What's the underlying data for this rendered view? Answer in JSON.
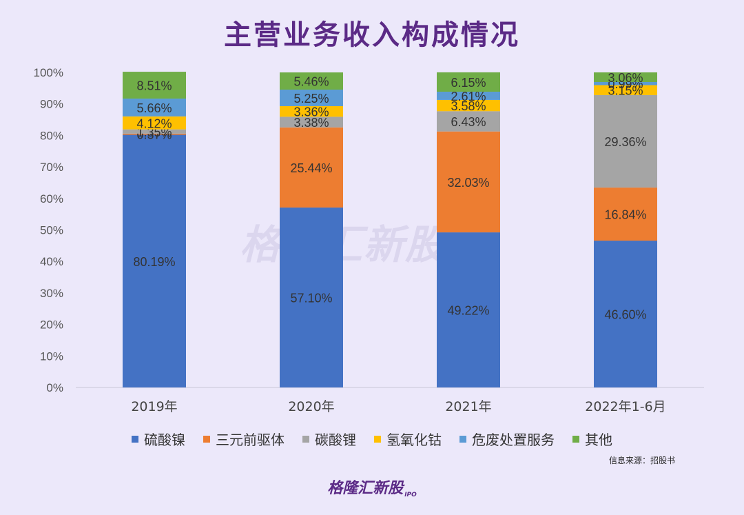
{
  "title": "主营业务收入构成情况",
  "source": "信息来源：招股书",
  "logo_text": "格隆汇新股",
  "logo_sub": "IPO",
  "chart_data": {
    "type": "bar",
    "stacked": true,
    "categories": [
      "2019年",
      "2020年",
      "2021年",
      "2022年1-6月"
    ],
    "ylim": [
      0,
      100
    ],
    "yticks": [
      "0%",
      "10%",
      "20%",
      "30%",
      "40%",
      "50%",
      "60%",
      "70%",
      "80%",
      "90%",
      "100%"
    ],
    "grid": false,
    "legend_position": "bottom",
    "series": [
      {
        "name": "硫酸镍",
        "color": "#4472c4",
        "values": [
          80.19,
          57.1,
          49.22,
          46.6
        ],
        "labels": [
          "80.19%",
          "57.10%",
          "49.22%",
          "46.60%"
        ]
      },
      {
        "name": "三元前驱体",
        "color": "#ed7d31",
        "values": [
          0.37,
          25.44,
          32.03,
          16.84
        ],
        "labels": [
          "0.37%",
          "25.44%",
          "32.03%",
          "16.84%"
        ]
      },
      {
        "name": "碳酸锂",
        "color": "#a5a5a5",
        "values": [
          1.35,
          3.38,
          6.43,
          29.36
        ],
        "labels": [
          "1.35%",
          "3.38%",
          "6.43%",
          "29.36%"
        ]
      },
      {
        "name": "氢氧化钴",
        "color": "#ffc000",
        "values": [
          4.12,
          3.36,
          3.58,
          3.15
        ],
        "labels": [
          "4.12%",
          "3.36%",
          "3.58%",
          "3.15%"
        ]
      },
      {
        "name": "危废处置服务",
        "color": "#5b9bd5",
        "values": [
          5.66,
          5.25,
          2.61,
          0.99
        ],
        "labels": [
          "5.66%",
          "5.25%",
          "2.61%",
          "0.99%"
        ]
      },
      {
        "name": "其他",
        "color": "#70ad47",
        "values": [
          8.51,
          5.46,
          6.15,
          3.06
        ],
        "labels": [
          "8.51%",
          "5.46%",
          "6.15%",
          "3.06%"
        ]
      }
    ]
  }
}
